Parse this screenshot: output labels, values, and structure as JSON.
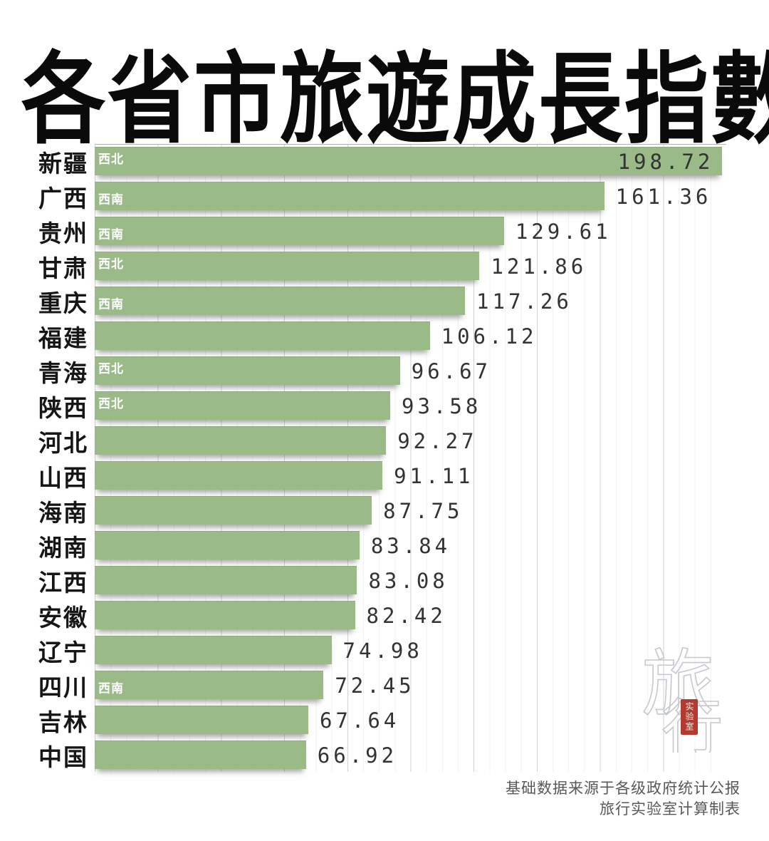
{
  "title": "各省市旅遊成長指數",
  "chart_data": {
    "type": "bar",
    "orientation": "horizontal",
    "title": "各省市旅遊成長指數",
    "xlabel": "",
    "ylabel": "",
    "x_range": [
      0,
      200
    ],
    "gridlines": {
      "major_step": 20,
      "minor_step": 5,
      "visible": true
    },
    "legend": "none",
    "bar_color": "#9aba88",
    "rows": [
      {
        "label": "新疆",
        "value": 198.72,
        "value_text": "198.72",
        "region_tag": "西北",
        "tag_valign": "top",
        "value_inside": true
      },
      {
        "label": "广西",
        "value": 161.36,
        "value_text": "161.36",
        "region_tag": "西南",
        "tag_valign": "middle"
      },
      {
        "label": "贵州",
        "value": 129.61,
        "value_text": "129.61",
        "region_tag": "西南",
        "tag_valign": "middle"
      },
      {
        "label": "甘肃",
        "value": 121.86,
        "value_text": "121.86",
        "region_tag": "西北",
        "tag_valign": "top"
      },
      {
        "label": "重庆",
        "value": 117.26,
        "value_text": "117.26",
        "region_tag": "西南",
        "tag_valign": "middle"
      },
      {
        "label": "福建",
        "value": 106.12,
        "value_text": "106.12",
        "region_tag": ""
      },
      {
        "label": "青海",
        "value": 96.67,
        "value_text": "96.67",
        "region_tag": "西北",
        "tag_valign": "top"
      },
      {
        "label": "陕西",
        "value": 93.58,
        "value_text": "93.58",
        "region_tag": "西北",
        "tag_valign": "top"
      },
      {
        "label": "河北",
        "value": 92.27,
        "value_text": "92.27",
        "region_tag": ""
      },
      {
        "label": "山西",
        "value": 91.11,
        "value_text": "91.11",
        "region_tag": ""
      },
      {
        "label": "海南",
        "value": 87.75,
        "value_text": "87.75",
        "region_tag": ""
      },
      {
        "label": "湖南",
        "value": 83.84,
        "value_text": "83.84",
        "region_tag": ""
      },
      {
        "label": "江西",
        "value": 83.08,
        "value_text": "83.08",
        "region_tag": ""
      },
      {
        "label": "安徽",
        "value": 82.42,
        "value_text": "82.42",
        "region_tag": ""
      },
      {
        "label": "辽宁",
        "value": 74.98,
        "value_text": "74.98",
        "region_tag": ""
      },
      {
        "label": "四川",
        "value": 72.45,
        "value_text": "72.45",
        "region_tag": "西南",
        "tag_valign": "middle"
      },
      {
        "label": "吉林",
        "value": 67.64,
        "value_text": "67.64",
        "region_tag": ""
      },
      {
        "label": "中国",
        "value": 66.92,
        "value_text": "66.92",
        "region_tag": ""
      }
    ]
  },
  "watermark": {
    "logo_char1": "旅",
    "logo_char2": "行",
    "seal_text": "实验室",
    "logo_color": "#c5c9ce",
    "seal_color": "#b23b31"
  },
  "footer": {
    "line1": "基础数据来源于各级政府统计公报",
    "line2": "旅行实验室计算制表"
  }
}
